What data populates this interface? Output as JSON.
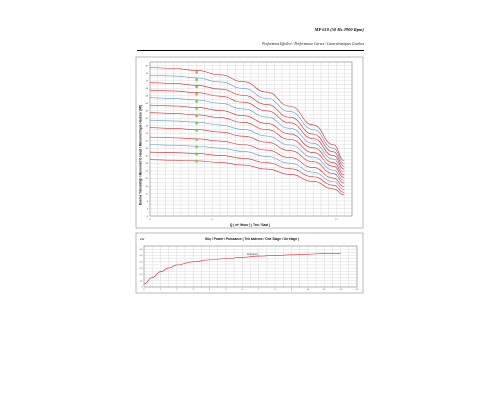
{
  "header": {
    "title": "MP 610 (50 Hz 2900 Rpm)",
    "subtitle": "Performans Eğrileri / Performance Curves / Caractéristiques Courbes"
  },
  "chart_data": [
    {
      "type": "line",
      "title": "",
      "xlabel": "Q ( m³ /Hour ) ( Ton / Saat )",
      "ylabel": "Basma Yüksekliği / Manometric Head / Manometrique Hauteur (Mt)",
      "xlim": [
        0,
        13
      ],
      "ylim": [
        0,
        82
      ],
      "x_ticks": [
        "0",
        "4",
        "12"
      ],
      "y_ticks": [
        "80",
        "76",
        "72",
        "68",
        "64",
        "60",
        "56",
        "52",
        "48",
        "44",
        "40",
        "36",
        "32",
        "28",
        "24",
        "20",
        "16",
        "12",
        "8",
        "4",
        "0"
      ],
      "grid": true,
      "legend": "none",
      "series": [
        {
          "shutoff": 79,
          "values": [
            79,
            78.6,
            77.5,
            75.2,
            71.5,
            66.0,
            58.5,
            48.5,
            38.0,
            29.5
          ],
          "bep": 76.5
        },
        {
          "shutoff": 75,
          "values": [
            75,
            74.6,
            73.5,
            71.4,
            67.9,
            62.7,
            55.6,
            46.1,
            36.1,
            28.0
          ],
          "bep": 72.6
        },
        {
          "shutoff": 71,
          "values": [
            71,
            70.6,
            69.6,
            67.6,
            64.3,
            59.4,
            52.6,
            43.6,
            34.2,
            26.5
          ],
          "bep": 68.8
        },
        {
          "shutoff": 67,
          "values": [
            67,
            66.6,
            65.7,
            63.8,
            60.6,
            56.0,
            49.6,
            41.2,
            32.2,
            25.0
          ],
          "bep": 64.9
        },
        {
          "shutoff": 63,
          "values": [
            63,
            62.6,
            61.8,
            60.0,
            57.0,
            52.7,
            46.7,
            38.7,
            30.3,
            23.5
          ],
          "bep": 61.0
        },
        {
          "shutoff": 59,
          "values": [
            59,
            58.6,
            57.8,
            56.2,
            53.4,
            49.3,
            43.7,
            36.3,
            28.4,
            22.0
          ],
          "bep": 57.2
        },
        {
          "shutoff": 55,
          "values": [
            55,
            54.6,
            53.9,
            52.4,
            49.8,
            46.0,
            40.8,
            33.8,
            26.5,
            20.5
          ],
          "bep": 53.3
        },
        {
          "shutoff": 51,
          "values": [
            51,
            50.6,
            50.0,
            48.5,
            46.1,
            42.6,
            37.8,
            31.3,
            24.5,
            19.0
          ],
          "bep": 49.4
        },
        {
          "shutoff": 47,
          "values": [
            47,
            46.6,
            46.0,
            44.7,
            42.5,
            39.3,
            34.8,
            28.9,
            22.6,
            17.5
          ],
          "bep": 45.6
        },
        {
          "shutoff": 42,
          "values": [
            42,
            41.6,
            41.1,
            39.9,
            38.0,
            35.1,
            31.1,
            25.8,
            20.2,
            15.6
          ],
          "bep": 40.7
        },
        {
          "shutoff": 38,
          "values": [
            38,
            37.7,
            37.2,
            36.1,
            34.4,
            31.7,
            28.1,
            23.3,
            18.3,
            14.1
          ],
          "bep": 36.8
        },
        {
          "shutoff": 34,
          "values": [
            34,
            33.7,
            33.3,
            32.3,
            30.7,
            28.4,
            25.2,
            20.9,
            16.4,
            12.6
          ],
          "bep": 33.0
        },
        {
          "shutoff": 30,
          "values": [
            30,
            29.7,
            29.4,
            28.5,
            27.1,
            25.0,
            22.2,
            18.4,
            14.4,
            11.2
          ],
          "bep": 29.1
        }
      ],
      "x": [
        0,
        1.5,
        3,
        4.5,
        6,
        7.5,
        9,
        10.5,
        11.8,
        12.5
      ],
      "bep_x": 3,
      "colors": {
        "curve": "#d7262e",
        "alt_curve": "#5b9bd5",
        "marker": "#7fc241",
        "grid": "#b9b9b9"
      }
    },
    {
      "type": "line",
      "title": "Güç / Power / Puissance ( Tek kademe / One Stage / Un étage )",
      "ylabel": "kW",
      "series_label": "Puissance",
      "xlim": [
        0,
        13
      ],
      "ylim": [
        0,
        0.65
      ],
      "x_ticks": [
        "0",
        "1",
        "2",
        "3",
        "4",
        "5",
        "6",
        "7",
        "8",
        "9",
        "10",
        "11",
        "12",
        "13"
      ],
      "y_ticks": [
        "0.6",
        "0.5",
        "0.4",
        "0.3",
        "0.2",
        "0.1",
        "0"
      ],
      "grid": true,
      "x": [
        0,
        0.5,
        1,
        1.5,
        2,
        3,
        4,
        5,
        6,
        7,
        8,
        9,
        10,
        11,
        12
      ],
      "values": [
        0.05,
        0.15,
        0.24,
        0.3,
        0.35,
        0.4,
        0.43,
        0.45,
        0.47,
        0.49,
        0.5,
        0.51,
        0.52,
        0.53,
        0.53
      ],
      "colors": {
        "curve": "#d7262e",
        "grid": "#b9b9b9"
      }
    }
  ]
}
